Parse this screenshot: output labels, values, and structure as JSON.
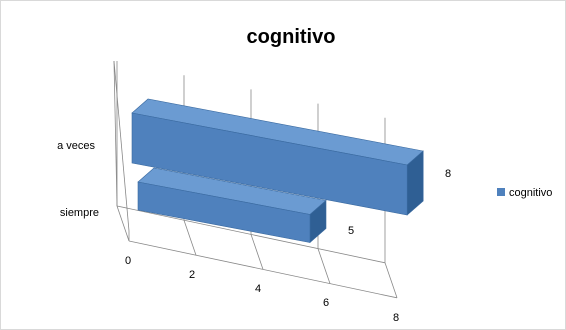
{
  "chart_data": {
    "type": "bar",
    "orientation": "horizontal",
    "style": "3d",
    "title": "cognitivo",
    "categories": [
      "siempre",
      "a veces"
    ],
    "series": [
      {
        "name": "cognitivo",
        "values": [
          5,
          8
        ],
        "color": "#4f81bd"
      }
    ],
    "data_labels": [
      "5",
      "8"
    ],
    "x_ticks": [
      "0",
      "2",
      "4",
      "6",
      "8"
    ],
    "xlim": [
      0,
      8
    ],
    "grid": true,
    "legend": "right"
  }
}
